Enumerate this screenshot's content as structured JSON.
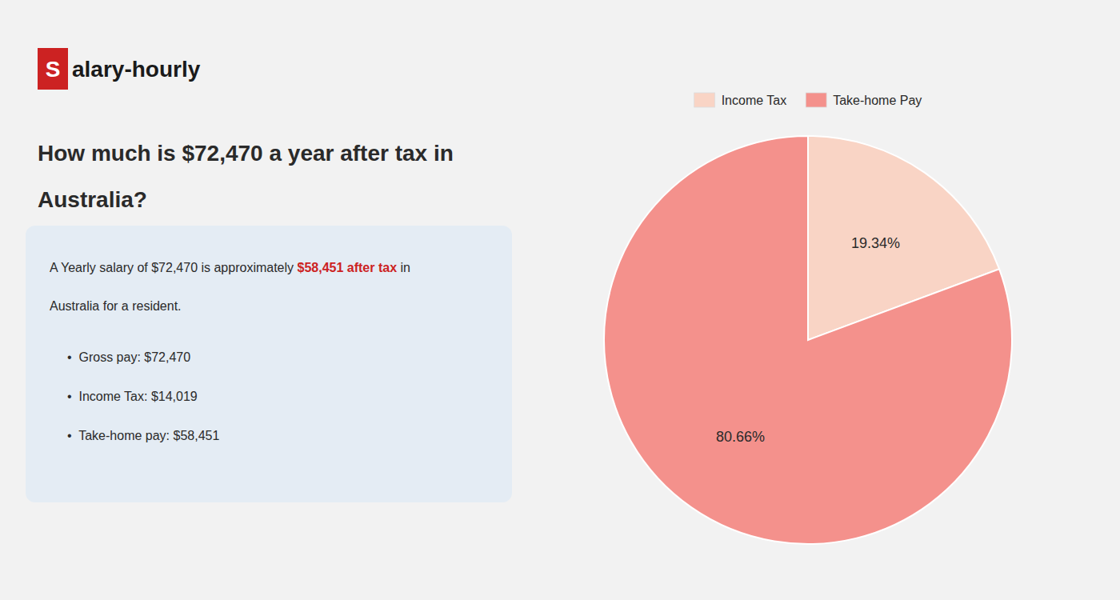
{
  "chart_data": {
    "type": "pie",
    "title": [
      "How much is $72,470 a year after tax in",
      "Australia?"
    ],
    "annotations": [
      "S",
      "alary-hourly",
      "A Yearly salary of $72,470 is approximately ",
      "$58,451 after tax",
      " in",
      "Australia for a resident.",
      "•  Gross pay: $72,470",
      "•  Income Tax: $14,019",
      "•  Take-home pay: $58,451"
    ],
    "categories": [
      "Income Tax",
      "Take-home Pay"
    ],
    "values": [
      19.34,
      80.66
    ],
    "value_labels": [
      "19.34%",
      "80.66%"
    ],
    "colors": [
      "#f9d4c5",
      "#f4918c"
    ],
    "data_labels": true,
    "legend": "top"
  }
}
